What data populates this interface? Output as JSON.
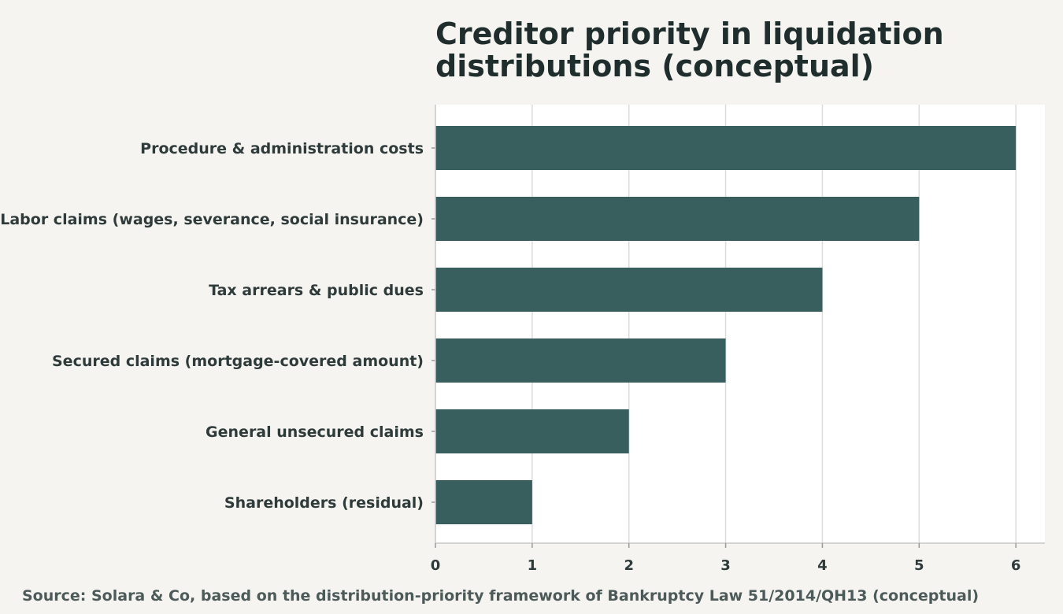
{
  "chart_data": {
    "type": "bar",
    "orientation": "horizontal",
    "title": "Creditor priority in liquidation distributions (conceptual)",
    "title_lines": [
      "Creditor priority in liquidation",
      "distributions (conceptual)"
    ],
    "categories": [
      "Procedure & administration costs",
      "Labor claims (wages, severance, social insurance)",
      "Tax arrears & public dues",
      "Secured claims (mortgage-covered amount)",
      "General unsecured claims",
      "Shareholders (residual)"
    ],
    "values": [
      6,
      5,
      4,
      3,
      2,
      1
    ],
    "xlabel": "",
    "ylabel": "",
    "xlim": [
      0,
      6.3
    ],
    "xticks": [
      0,
      1,
      2,
      3,
      4,
      5,
      6
    ],
    "grid": "vertical",
    "legend": "none",
    "bar_color": "#395e5e",
    "plot_background": "#ffffff",
    "page_background": "#f5f4f0",
    "source": "Source: Solara & Co, based on the distribution-priority framework of Bankruptcy Law 51/2014/QH13 (conceptual)"
  }
}
